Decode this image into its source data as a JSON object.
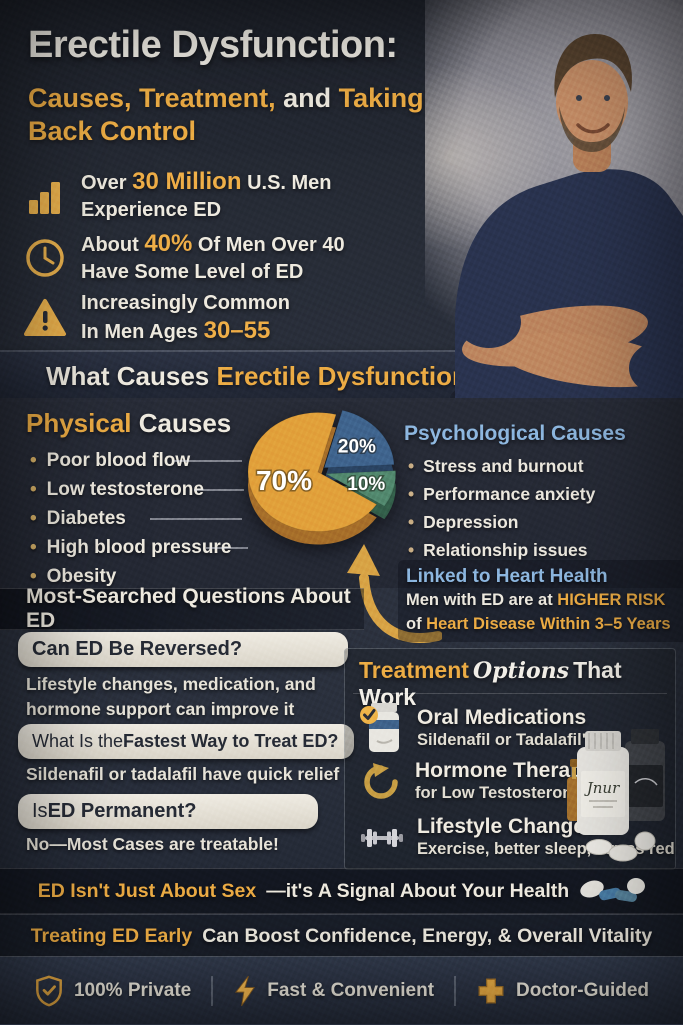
{
  "hero": {
    "title": "Erectile Dysfunction:",
    "subtitle": {
      "gold1": "Causes, Treatment,",
      "and": " and ",
      "gold2": "Taking Back Control"
    },
    "stats": {
      "s1": {
        "pre": "Over ",
        "hl": "30 Million",
        "post": " U.S. Men",
        "line2": "Experience ED"
      },
      "s2": {
        "pre": "About ",
        "hl": "40%",
        "post": " Of Men Over 40",
        "line2": "Have Some Level of ED"
      },
      "s3": {
        "line1": "Increasingly Common",
        "line2_pre": "In Men Ages ",
        "hl": "30–55"
      }
    }
  },
  "causes_band": {
    "white": "What Causes ",
    "gold": "Erectile Dysfunction?"
  },
  "physical": {
    "title_gold": "Physical",
    "title_white": " Causes",
    "items": [
      "Poor blood flow",
      "Low testosterone",
      "Diabetes",
      "High blood pressure",
      "Obesity"
    ]
  },
  "psychological": {
    "title": "Psychological Causes",
    "items": [
      "Stress and burnout",
      "Performance anxiety",
      "Depression",
      "Relationship issues"
    ]
  },
  "chart_data": {
    "type": "pie",
    "style": "3d-exploded-pie",
    "legend": false,
    "start_angle": 123,
    "slices": [
      {
        "label": "70%",
        "value": 70,
        "color": "#E2A23B",
        "side_color": "#A8702A"
      },
      {
        "label": "20%",
        "value": 20,
        "color": "#40658F",
        "side_color": "#2A4463"
      },
      {
        "label": "10%",
        "value": 10,
        "color": "#538A70",
        "side_color": "#34604B"
      }
    ]
  },
  "heart": {
    "title": "Linked to Heart Health",
    "l1_pre": "Men with ED are at ",
    "l1_hl": "HIGHER RISK",
    "l2_pre": "of ",
    "l2_hl": "Heart Disease Within 3–5 Years"
  },
  "questions": {
    "header": "Most-Searched Questions About ED",
    "q1": {
      "bold": "Can ED Be Reversed?",
      "answer": "Lifestyle changes, medication, and hormone support can improve it"
    },
    "q2": {
      "pre": "What Is the ",
      "bold": "Fastest Way to Treat ED?",
      "answer": "Sildenafil or tadalafil have quick relief"
    },
    "q3": {
      "pre": "Is ",
      "bold": "ED Permanent?",
      "answer": "No—Most Cases are treatable!"
    }
  },
  "treatment": {
    "title_gold": "Treatment",
    "title_script": "Options",
    "title_white": "That Work",
    "items": [
      {
        "icon": "pill-bottle-check-icon",
        "title": "Oral Medications",
        "subtitle": "Sildenafil or Tadalafil\""
      },
      {
        "icon": "hormone-cycle-icon",
        "title": "Hormone Therapy",
        "subtitle": "for Low Testosterone"
      },
      {
        "icon": "dumbbell-icon",
        "title": "Lifestyle Changes",
        "subtitle": "Exercise, better sleep, stress red"
      }
    ],
    "bottle_label": "Jnur"
  },
  "banner1": {
    "gold": "ED Isn't Just About Sex",
    "white": "—it's A Signal About Your Health"
  },
  "banner2": {
    "gold": "Treating ED Early",
    "white": " Can Boost Confidence, Energy, & Overall Vitality"
  },
  "footer": {
    "badges": [
      {
        "icon": "shield-check-icon",
        "label": "100% Private"
      },
      {
        "icon": "bolt-icon",
        "label": "Fast & Convenient"
      },
      {
        "icon": "cross-icon",
        "label": "Doctor-Guided"
      }
    ]
  },
  "colors": {
    "gold": "#EDAD45",
    "light_blue": "#8FB8E0",
    "warm_white": "#EFEBE0",
    "pill_bg": "#E7E3DA"
  }
}
